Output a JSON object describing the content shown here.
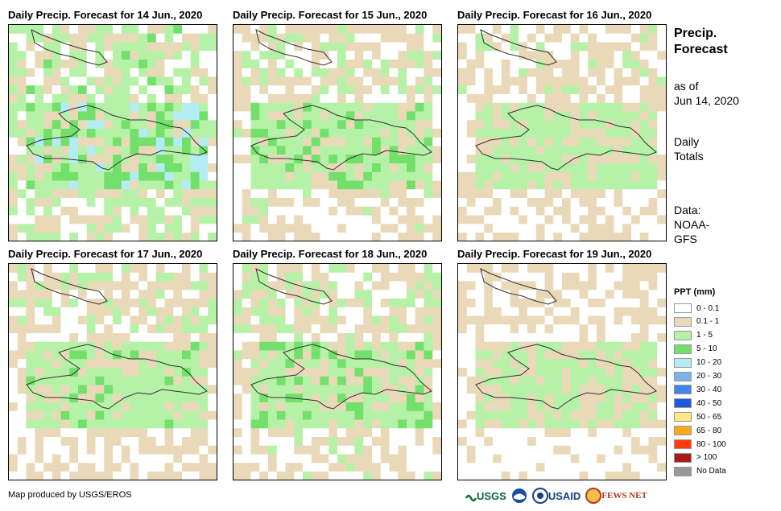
{
  "panels": [
    {
      "title": "Daily Precip. Forecast for 14 Jun., 2020",
      "wet": 0.75
    },
    {
      "title": "Daily Precip. Forecast for 15 Jun., 2020",
      "wet": 0.55
    },
    {
      "title": "Daily Precip. Forecast for 16 Jun., 2020",
      "wet": 0.45
    },
    {
      "title": "Daily Precip. Forecast for 17 Jun., 2020",
      "wet": 0.5
    },
    {
      "title": "Daily Precip. Forecast for 18 Jun., 2020",
      "wet": 0.55
    },
    {
      "title": "Daily Precip. Forecast for 19 Jun., 2020",
      "wet": 0.35
    }
  ],
  "sidebar": {
    "title_line1": "Precip.",
    "title_line2": "Forecast",
    "as_of_line1": "as of",
    "as_of_line2": "Jun 14, 2020",
    "totals_line1": "Daily",
    "totals_line2": "Totals",
    "data_line1": "Data:",
    "data_line2": "NOAA-",
    "data_line3": "GFS"
  },
  "legend": {
    "title": "PPT (mm)",
    "items": [
      {
        "label": "0 - 0.1",
        "color": "#ffffff"
      },
      {
        "label": "0.1 - 1",
        "color": "#ead9b9"
      },
      {
        "label": "1 - 5",
        "color": "#b5f1a6"
      },
      {
        "label": "5 - 10",
        "color": "#72e06a"
      },
      {
        "label": "10 - 20",
        "color": "#b4ecf4"
      },
      {
        "label": "20 - 30",
        "color": "#79b4ee"
      },
      {
        "label": "30 - 40",
        "color": "#3f86e8"
      },
      {
        "label": "40 - 50",
        "color": "#1f58e0"
      },
      {
        "label": "50 - 65",
        "color": "#fde88a"
      },
      {
        "label": "65 - 80",
        "color": "#f7a81c"
      },
      {
        "label": "80 - 100",
        "color": "#ff3c10"
      },
      {
        "label": "> 100",
        "color": "#a71b1b"
      },
      {
        "label": "No Data",
        "color": "#999999"
      }
    ]
  },
  "credit": "Map produced by USGS/EROS",
  "logos": {
    "usgs": "USGS",
    "usaid": "USAID",
    "fewsnet": "FEWS NET"
  }
}
